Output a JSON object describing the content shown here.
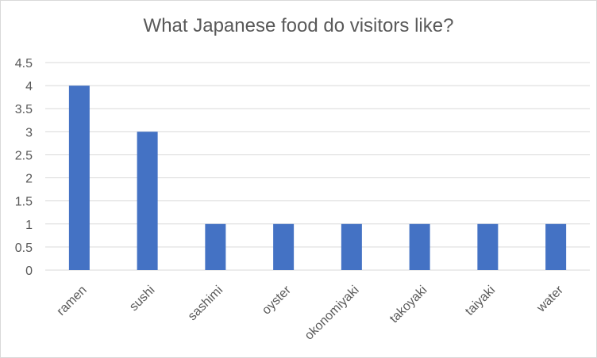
{
  "chart_data": {
    "type": "bar",
    "title": "What Japanese food do visitors like?",
    "xlabel": "",
    "ylabel": "",
    "categories": [
      "ramen",
      "sushi",
      "sashimi",
      "oyster",
      "okonomiyaki",
      "takoyaki",
      "taiyaki",
      "water"
    ],
    "values": [
      4,
      3,
      1,
      1,
      1,
      1,
      1,
      1
    ],
    "ylim": [
      0,
      4.5
    ],
    "yticks": [
      "0",
      "0.5",
      "1",
      "1.5",
      "2",
      "2.5",
      "3",
      "3.5",
      "4",
      "4.5"
    ],
    "grid": true,
    "legend": "none",
    "bar_color": "#4472c4",
    "grid_color": "#d9d9d9"
  }
}
